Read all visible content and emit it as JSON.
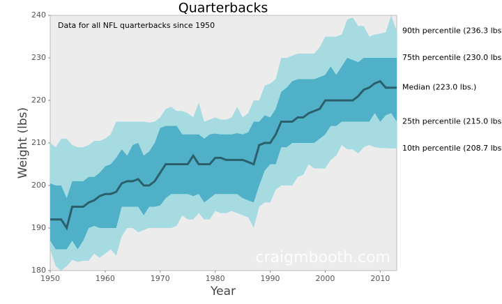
{
  "chart_data": {
    "type": "band",
    "title": "Quarterbacks",
    "annotation": "Data for all NFL quarterbacks since 1950",
    "watermark": "craigmbooth.com",
    "x_label": "Year",
    "y_label": "Weight (lbs)",
    "x": [
      1950,
      1951,
      1952,
      1953,
      1954,
      1955,
      1956,
      1957,
      1958,
      1959,
      1960,
      1961,
      1962,
      1963,
      1964,
      1965,
      1966,
      1967,
      1968,
      1969,
      1970,
      1971,
      1972,
      1973,
      1974,
      1975,
      1976,
      1977,
      1978,
      1979,
      1980,
      1981,
      1982,
      1983,
      1984,
      1985,
      1986,
      1987,
      1988,
      1989,
      1990,
      1991,
      1992,
      1993,
      1994,
      1995,
      1996,
      1997,
      1998,
      1999,
      2000,
      2001,
      2002,
      2003,
      2004,
      2005,
      2006,
      2007,
      2008,
      2009,
      2010,
      2011,
      2012,
      2013
    ],
    "series": [
      {
        "name": "10th percentile (208.7 lbs.)",
        "color": "#a7dbe2",
        "values": [
          185,
          181,
          180,
          181,
          182.5,
          182,
          182.3,
          182.3,
          184,
          183,
          184,
          185,
          183.5,
          188,
          190,
          190,
          189,
          189.5,
          190,
          190,
          190,
          190,
          190,
          190.5,
          193,
          192,
          192,
          193.5,
          192,
          192,
          194,
          193.5,
          193.5,
          194,
          193.5,
          193,
          192.5,
          190,
          195,
          196,
          196,
          199,
          200,
          200,
          200,
          202,
          202.5,
          205,
          204,
          204,
          204,
          206,
          207,
          209.5,
          208.5,
          208.5,
          207.5,
          209,
          209.5,
          209,
          208.8,
          208.8,
          208.7,
          208.7
        ]
      },
      {
        "name": "25th percentile (215.0 lbs.)",
        "color": "#4fb0c8",
        "values": [
          187,
          185,
          185,
          185,
          187,
          185,
          187,
          190,
          190.5,
          190,
          190,
          190,
          190,
          195,
          195,
          195,
          195,
          193,
          195,
          195,
          195.3,
          197,
          198,
          198,
          198,
          198,
          197.5,
          198,
          196,
          197,
          198,
          198,
          198,
          198,
          198,
          197,
          196.5,
          196,
          200,
          203.5,
          205,
          205,
          209,
          209,
          210,
          210,
          210,
          210,
          210,
          211,
          212,
          214,
          214,
          215,
          215,
          215,
          215,
          215,
          215,
          217,
          215,
          216.5,
          217,
          215
        ]
      },
      {
        "name": "Median (223.0 lbs.)",
        "color": "#2b5f6c",
        "values": [
          192,
          192,
          192,
          190,
          195,
          195,
          195,
          196,
          196.5,
          197.5,
          198,
          198,
          198.5,
          200.5,
          201,
          201,
          201.5,
          200,
          200,
          201,
          203,
          205,
          205,
          205,
          205,
          205,
          207,
          205,
          205,
          205,
          206.5,
          206.5,
          206,
          206,
          206,
          206,
          205.5,
          205,
          209.5,
          210,
          210,
          212,
          215,
          215,
          215,
          216,
          216,
          217,
          217.5,
          218,
          220,
          220,
          220,
          220,
          220,
          220,
          221,
          222.5,
          223,
          224,
          224.5,
          223,
          223,
          223
        ]
      },
      {
        "name": "75th percentile (230.0 lbs.)",
        "color": "#4fb0c8",
        "values": [
          200.5,
          200,
          200,
          197,
          201,
          201,
          201,
          202,
          202,
          203,
          204.5,
          205,
          206.5,
          208.5,
          207,
          209.5,
          210,
          207,
          208,
          210,
          213.5,
          214,
          214,
          214,
          212,
          212,
          212,
          212,
          211,
          212,
          212.2,
          212,
          212,
          212,
          212.3,
          212,
          212.5,
          215,
          215,
          216.5,
          216,
          218,
          222,
          223,
          224.5,
          225,
          225,
          225,
          225,
          225.5,
          226,
          228,
          226,
          228,
          230,
          229.5,
          229,
          230,
          230,
          230,
          230,
          230,
          230,
          230
        ]
      },
      {
        "name": "90th percentile (236.3 lbs.)",
        "color": "#a7dbe2",
        "values": [
          210,
          209,
          211,
          211,
          209.5,
          209,
          209,
          209.5,
          210.5,
          210.5,
          211,
          212,
          215,
          215,
          215,
          215,
          215,
          215,
          214.8,
          215,
          216,
          218,
          218.5,
          217.5,
          217.5,
          217,
          216,
          219.5,
          215,
          215.5,
          216,
          215.5,
          215.5,
          216,
          218.5,
          216,
          217,
          220,
          220,
          223.5,
          224,
          225,
          230,
          230,
          230.5,
          231,
          231,
          231,
          231,
          232.5,
          235,
          235,
          235,
          235.5,
          239,
          239.5,
          237.5,
          237.5,
          235,
          235.5,
          235.7,
          236,
          240,
          236.3
        ]
      }
    ],
    "xlim": [
      1950,
      2013
    ],
    "ylim": [
      180,
      240
    ],
    "xticks": [
      1950,
      1960,
      1970,
      1980,
      1990,
      2000,
      2010
    ],
    "yticks": [
      180,
      190,
      200,
      210,
      220,
      230,
      240
    ]
  }
}
